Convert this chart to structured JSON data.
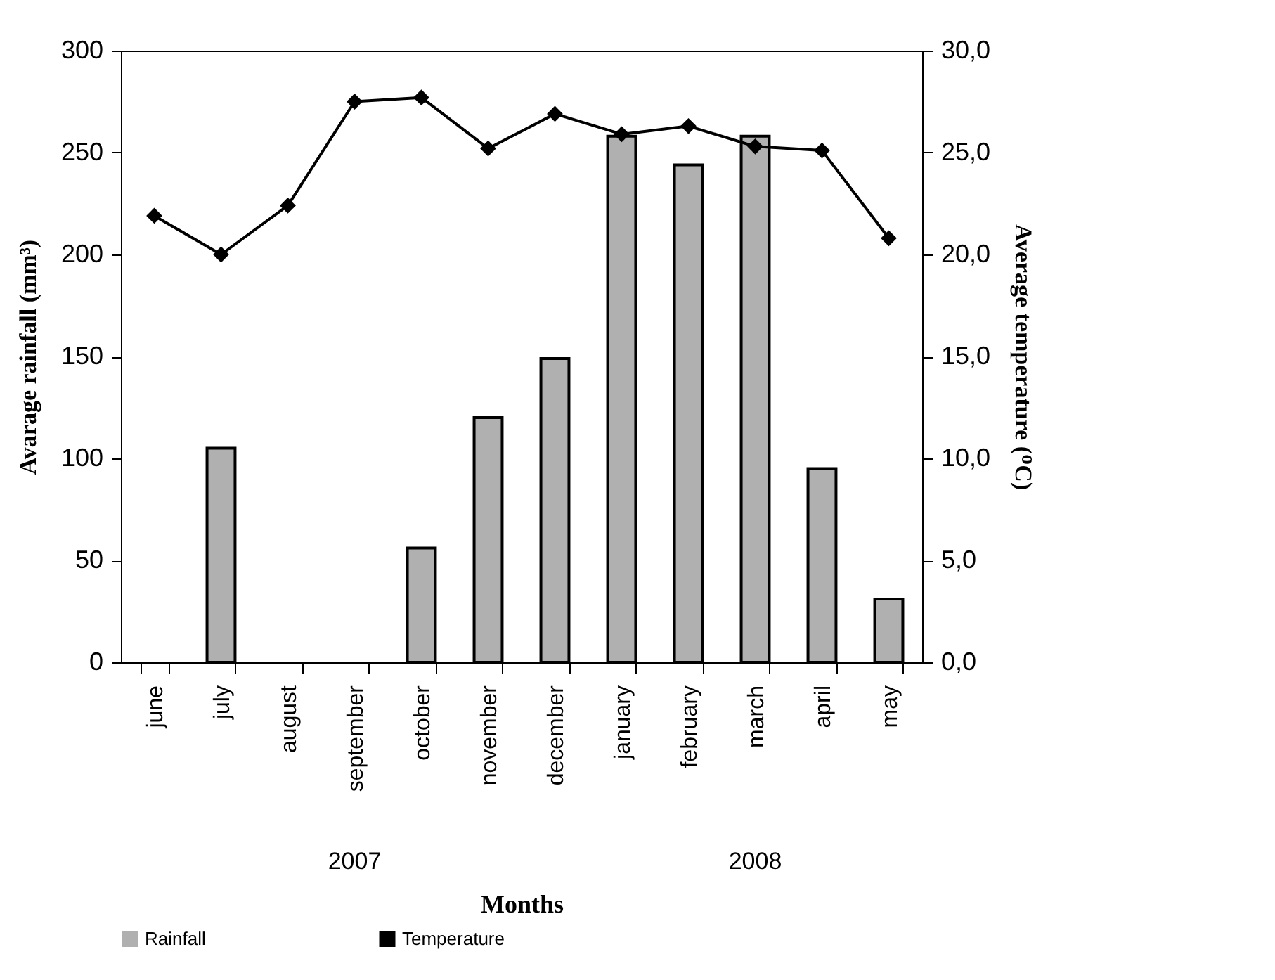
{
  "chart_data": {
    "type": "bar",
    "xlabel": "Months",
    "ylabel": "Avarage rainfall (mm³)",
    "y2label": "Average temperature (ᴼC)",
    "categories": [
      "june",
      "july",
      "august",
      "september",
      "october",
      "november",
      "december",
      "january",
      "february",
      "march",
      "april",
      "may"
    ],
    "series": [
      {
        "name": "Rainfall",
        "color": "#b0b0b0",
        "values": [
          null,
          105,
          null,
          null,
          56,
          120,
          149,
          258,
          244,
          258,
          95,
          31
        ]
      },
      {
        "name": "Temperature",
        "type": "line",
        "axis": "y2",
        "color": "#000000",
        "marker": "diamond",
        "values": [
          21.9,
          20.0,
          22.4,
          27.5,
          27.7,
          25.2,
          26.9,
          25.9,
          26.3,
          25.3,
          25.1,
          20.8
        ]
      }
    ],
    "ylim": [
      0,
      300
    ],
    "yticks": [
      0,
      50,
      100,
      150,
      200,
      250,
      300
    ],
    "y2lim": [
      0,
      30
    ],
    "y2ticks": [
      {
        "value": 0,
        "label": "0,0"
      },
      {
        "value": 5,
        "label": "5,0"
      },
      {
        "value": 10,
        "label": "10,0"
      },
      {
        "value": 15,
        "label": "15,0"
      },
      {
        "value": 20,
        "label": "20,0"
      },
      {
        "value": 25,
        "label": "25,0"
      },
      {
        "value": 30,
        "label": "30,0"
      }
    ],
    "annotations": [
      "2007",
      "2008"
    ],
    "grid": false,
    "legend": "bottom"
  }
}
